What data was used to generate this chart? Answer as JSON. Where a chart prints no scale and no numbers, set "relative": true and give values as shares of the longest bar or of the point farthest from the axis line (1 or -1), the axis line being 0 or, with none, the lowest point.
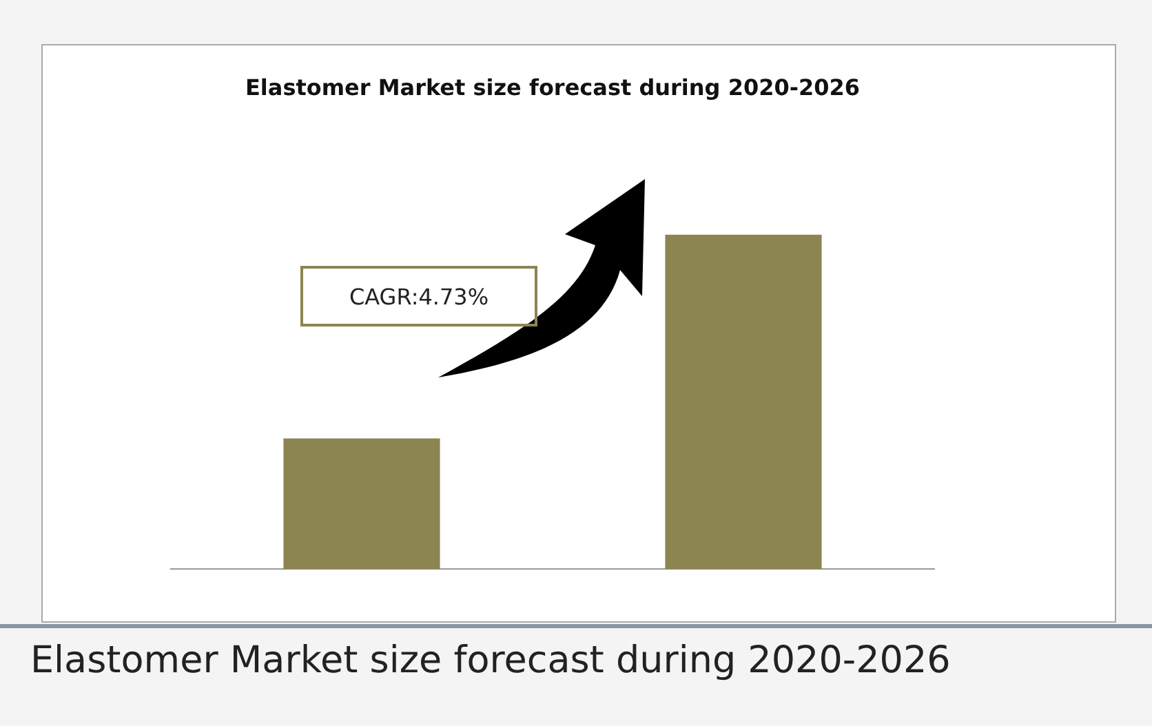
{
  "chart_data": {
    "type": "bar",
    "title": "Elastomer Market size forecast during 2020-2026",
    "categories": [
      null,
      null
    ],
    "values": [
      0.39,
      1
    ],
    "color": "#8c8552",
    "relative": true,
    "annotations": [
      "CAGR:4.73%",
      "Elastomer Market size forecast during 2020-2026"
    ]
  }
}
